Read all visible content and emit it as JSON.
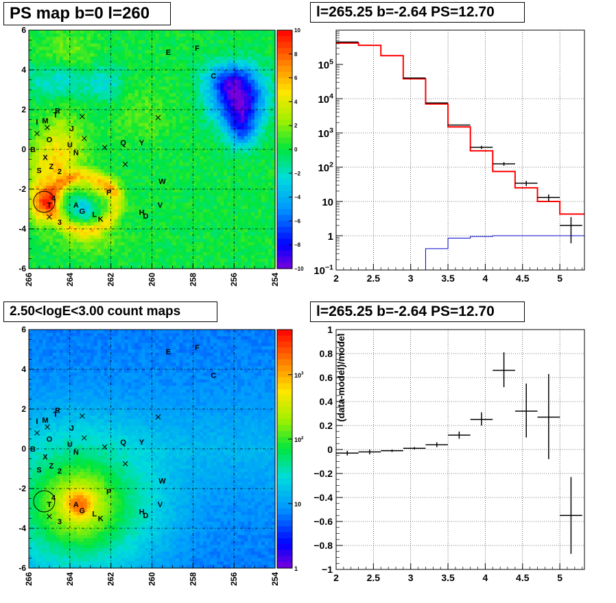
{
  "chart_data": [
    {
      "type": "heatmap",
      "title": "PS map b=0 l=260",
      "xlabel": "",
      "ylabel": "",
      "xlim": [
        266,
        254
      ],
      "ylim": [
        -6,
        6
      ],
      "x_ticks": [
        "266",
        "264",
        "262",
        "260",
        "258",
        "256",
        "254"
      ],
      "y_ticks": [
        "6",
        "4",
        "2",
        "0",
        "-2",
        "-4",
        "-6"
      ],
      "colorbar": {
        "scale": "linear",
        "range": [
          -10,
          10
        ],
        "tick_labels": [
          "10",
          "8",
          "6",
          "4",
          "2",
          "0",
          "−2",
          "−4",
          "−6",
          "−8",
          "−10"
        ]
      },
      "grid": true,
      "markers": [
        {
          "label": "E",
          "l": 259.2,
          "b": 4.9
        },
        {
          "label": "F",
          "l": 257.8,
          "b": 5.1
        },
        {
          "label": "C",
          "l": 257.0,
          "b": 3.7
        },
        {
          "label": "R",
          "l": 264.6,
          "b": 1.95
        },
        {
          "label": "T",
          "l": 264.7,
          "b": 1.75
        },
        {
          "label": "I",
          "l": 265.6,
          "b": 1.4
        },
        {
          "label": "M",
          "l": 265.2,
          "b": 1.45
        },
        {
          "label": "J",
          "l": 263.9,
          "b": 1.05
        },
        {
          "label": "O",
          "l": 265.0,
          "b": 0.5
        },
        {
          "label": "U",
          "l": 264.0,
          "b": 0.25
        },
        {
          "label": "N",
          "l": 263.7,
          "b": -0.15
        },
        {
          "label": "B",
          "l": 265.8,
          "b": 0.0
        },
        {
          "label": "X",
          "l": 265.2,
          "b": -0.4
        },
        {
          "label": "Z",
          "l": 264.9,
          "b": -0.85
        },
        {
          "label": "S",
          "l": 265.5,
          "b": -1.05
        },
        {
          "label": "2",
          "l": 264.5,
          "b": -1.1
        },
        {
          "label": "Q",
          "l": 261.4,
          "b": 0.35
        },
        {
          "label": "Y",
          "l": 260.5,
          "b": 0.35
        },
        {
          "label": "W",
          "l": 259.5,
          "b": -1.6
        },
        {
          "label": "P",
          "l": 262.1,
          "b": -2.15
        },
        {
          "label": "4",
          "l": 264.8,
          "b": -2.45
        },
        {
          "label": "T",
          "l": 265.0,
          "b": -2.8
        },
        {
          "label": "A",
          "l": 263.7,
          "b": -2.8
        },
        {
          "label": "G",
          "l": 263.4,
          "b": -3.1
        },
        {
          "label": "L",
          "l": 262.8,
          "b": -3.25
        },
        {
          "label": "K",
          "l": 262.5,
          "b": -3.5
        },
        {
          "label": "3",
          "l": 264.5,
          "b": -3.65
        },
        {
          "label": "H",
          "l": 260.5,
          "b": -3.15
        },
        {
          "label": "D",
          "l": 260.3,
          "b": -3.35
        },
        {
          "label": "V",
          "l": 259.6,
          "b": -2.8
        }
      ],
      "crosses": [
        {
          "l": 263.4,
          "b": 1.65
        },
        {
          "l": 259.7,
          "b": 1.6
        },
        {
          "l": 265.1,
          "b": 1.1
        },
        {
          "l": 265.6,
          "b": 0.8
        },
        {
          "l": 263.3,
          "b": 0.55
        },
        {
          "l": 262.3,
          "b": 0.1
        },
        {
          "l": 261.3,
          "b": -0.75
        },
        {
          "l": 265.0,
          "b": -3.4
        }
      ],
      "circle": {
        "l": 265.25,
        "b": -2.64,
        "r": 0.45
      }
    },
    {
      "type": "line",
      "title": "l=265.25 b=-2.64 PS=12.70",
      "xlabel": "",
      "ylabel": "",
      "xlim": [
        2,
        5.33
      ],
      "ylim": [
        0.1,
        1000000
      ],
      "y_scale": "log",
      "x_ticks": [
        "2",
        "2.5",
        "3",
        "3.5",
        "4",
        "4.5",
        "5"
      ],
      "y_ticks": [
        {
          "base": "10",
          "exp": "5"
        },
        {
          "base": "10",
          "exp": "4"
        },
        {
          "base": "10",
          "exp": "3"
        },
        {
          "base": "10",
          "exp": "2"
        },
        {
          "base": "10",
          "exp": ""
        },
        {
          "base": "1",
          "exp": ""
        },
        {
          "base": "10",
          "exp": "−1"
        }
      ],
      "grid": true,
      "series": [
        {
          "type": "step",
          "color": "#ff0000",
          "edges": [
            2,
            2.3,
            2.6,
            2.9,
            3.2,
            3.5,
            3.8,
            4.1,
            4.4,
            4.7,
            5.0,
            5.33
          ],
          "values": [
            420000,
            360000,
            180000,
            38000,
            7000,
            1500,
            300,
            75,
            25,
            10,
            4.3
          ]
        },
        {
          "type": "step",
          "color": "#0000cc",
          "edges": [
            2,
            2.3,
            2.6,
            2.9,
            3.2,
            3.5,
            3.8,
            4.1,
            4.4,
            4.7,
            5.0,
            5.33
          ],
          "values": [
            0.1,
            0.1,
            0.1,
            0.1,
            0.42,
            0.85,
            0.95,
            1.0,
            1.0,
            1.0,
            1.0
          ]
        },
        {
          "type": "points",
          "color": "#000000",
          "points": [
            {
              "x": 2.15,
              "y": 450000,
              "dx": 0.15,
              "lo": 450000,
              "hi": 450000
            },
            {
              "x": 3.05,
              "y": 40000,
              "dx": 0.15,
              "lo": 40000,
              "hi": 40000
            },
            {
              "x": 3.35,
              "y": 7500,
              "dx": 0.15,
              "lo": 7500,
              "hi": 7500
            },
            {
              "x": 3.65,
              "y": 1700,
              "dx": 0.15,
              "lo": 1700,
              "hi": 1700
            },
            {
              "x": 3.95,
              "y": 380,
              "dx": 0.15,
              "lo": 340,
              "hi": 420
            },
            {
              "x": 4.25,
              "y": 125,
              "dx": 0.15,
              "lo": 110,
              "hi": 140
            },
            {
              "x": 4.55,
              "y": 34,
              "dx": 0.15,
              "lo": 28,
              "hi": 40
            },
            {
              "x": 4.85,
              "y": 13,
              "dx": 0.15,
              "lo": 10,
              "hi": 16
            },
            {
              "x": 5.15,
              "y": 2.0,
              "dx": 0.15,
              "lo": 0.6,
              "hi": 3.5
            }
          ]
        }
      ]
    },
    {
      "type": "heatmap",
      "title": "2.50<logE<3.00 count maps",
      "xlabel": "",
      "ylabel": "",
      "xlim": [
        266,
        254
      ],
      "ylim": [
        -6,
        6
      ],
      "x_ticks": [
        "266",
        "264",
        "262",
        "260",
        "258",
        "256",
        "254"
      ],
      "y_ticks": [
        "6",
        "4",
        "2",
        "0",
        "-2",
        "-4",
        "-6"
      ],
      "colorbar": {
        "scale": "log",
        "range": [
          1,
          5000
        ],
        "tick_labels": [
          {
            "base": "10",
            "exp": "3"
          },
          {
            "base": "10",
            "exp": "2"
          },
          {
            "base": "10",
            "exp": ""
          },
          {
            "base": "1",
            "exp": ""
          }
        ]
      },
      "grid": true,
      "markers_same_as_first": true,
      "circle": {
        "l": 265.25,
        "b": -2.64,
        "r": 0.45
      }
    },
    {
      "type": "scatter",
      "title": "l=265.25 b=-2.64 PS=12.70",
      "xlabel": "",
      "ylabel": "(data-model)/model",
      "xlim": [
        2,
        5.33
      ],
      "ylim": [
        -1,
        1
      ],
      "x_ticks": [
        "2",
        "2.5",
        "3",
        "3.5",
        "4",
        "4.5",
        "5"
      ],
      "y_ticks": [
        "1",
        "0.8",
        "0.6",
        "0.4",
        "0.2",
        "0",
        "−0.2",
        "−0.4",
        "−0.6",
        "−0.8",
        "−1"
      ],
      "grid": true,
      "points": [
        {
          "x": 2.15,
          "y": -0.03,
          "dx": 0.15,
          "lo": -0.05,
          "hi": -0.01
        },
        {
          "x": 2.45,
          "y": -0.02,
          "dx": 0.15,
          "lo": -0.04,
          "hi": 0.0
        },
        {
          "x": 2.75,
          "y": -0.01,
          "dx": 0.15,
          "lo": -0.02,
          "hi": 0.0
        },
        {
          "x": 3.05,
          "y": 0.01,
          "dx": 0.15,
          "lo": 0.0,
          "hi": 0.02
        },
        {
          "x": 3.35,
          "y": 0.04,
          "dx": 0.15,
          "lo": 0.02,
          "hi": 0.06
        },
        {
          "x": 3.65,
          "y": 0.12,
          "dx": 0.15,
          "lo": 0.09,
          "hi": 0.15
        },
        {
          "x": 3.95,
          "y": 0.25,
          "dx": 0.15,
          "lo": 0.2,
          "hi": 0.31
        },
        {
          "x": 4.25,
          "y": 0.66,
          "dx": 0.15,
          "lo": 0.52,
          "hi": 0.81
        },
        {
          "x": 4.55,
          "y": 0.32,
          "dx": 0.15,
          "lo": 0.1,
          "hi": 0.55
        },
        {
          "x": 4.85,
          "y": 0.27,
          "dx": 0.15,
          "lo": -0.08,
          "hi": 0.63
        },
        {
          "x": 5.15,
          "y": -0.55,
          "dx": 0.15,
          "lo": -0.87,
          "hi": -0.23
        }
      ]
    }
  ]
}
